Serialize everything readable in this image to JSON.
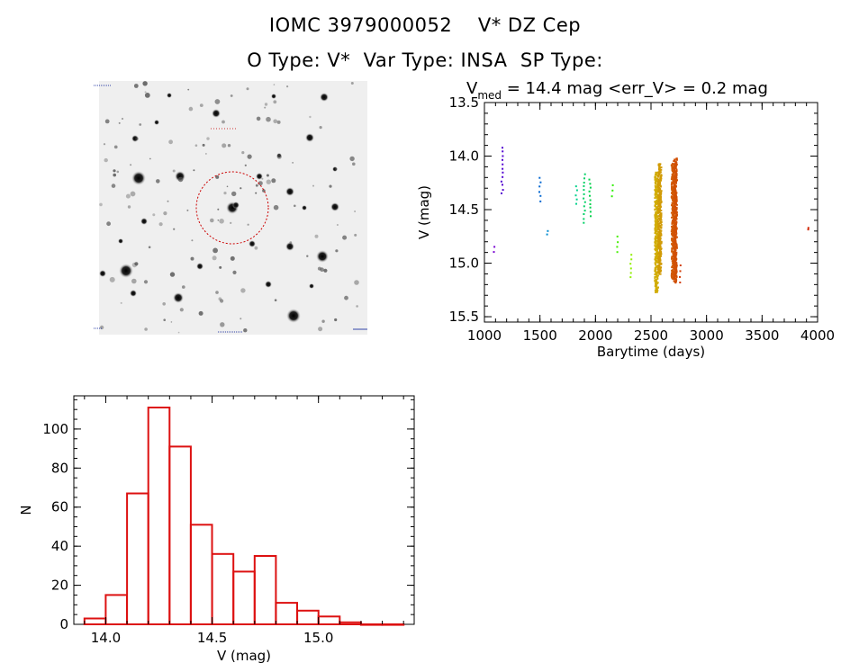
{
  "header": {
    "title_line1": "IOMC 3979000052    V* DZ Cep",
    "title_line2": "O Type: V*  Var Type: INSA  SP Type:"
  },
  "chart_data": [
    {
      "type": "scatter",
      "title_main": "V",
      "title_sub": "med",
      "title_rest": " = 14.4 mag <err_V> = 0.2 mag",
      "xlabel": "Barytime (days)",
      "ylabel": "V (mag)",
      "xlim": [
        1000,
        4000
      ],
      "ylim": [
        15.55,
        13.5
      ],
      "y_inverted": true,
      "xticks": [
        1000,
        1500,
        2000,
        2500,
        3000,
        3500,
        4000
      ],
      "yticks": [
        13.5,
        14.0,
        14.5,
        15.0,
        15.5
      ],
      "point_color_scale": "time (purple → blue → cyan → green → yellow → orange → red)",
      "clusters": [
        {
          "x": 1090,
          "y_min": 14.85,
          "y_max": 14.9
        },
        {
          "x": 1160,
          "y_min": 13.92,
          "y_max": 14.35
        },
        {
          "x": 1500,
          "y_min": 14.2,
          "y_max": 14.42
        },
        {
          "x": 1570,
          "y_min": 14.7,
          "y_max": 14.73
        },
        {
          "x": 1830,
          "y_min": 14.28,
          "y_max": 14.45
        },
        {
          "x": 1900,
          "y_min": 14.17,
          "y_max": 14.62
        },
        {
          "x": 1950,
          "y_min": 14.22,
          "y_max": 14.56
        },
        {
          "x": 2150,
          "y_min": 14.27,
          "y_max": 14.38
        },
        {
          "x": 2200,
          "y_min": 14.75,
          "y_max": 14.9
        },
        {
          "x": 2320,
          "y_min": 14.92,
          "y_max": 15.13
        },
        {
          "x": 2550,
          "y_min": 14.15,
          "y_max": 15.27
        },
        {
          "x": 2580,
          "y_min": 14.07,
          "y_max": 15.1
        },
        {
          "x": 2700,
          "y_min": 14.07,
          "y_max": 15.15
        },
        {
          "x": 2720,
          "y_min": 14.02,
          "y_max": 15.18
        },
        {
          "x": 2760,
          "y_min": 15.02,
          "y_max": 15.18
        },
        {
          "x": 3920,
          "y_min": 14.67,
          "y_max": 14.69
        }
      ]
    },
    {
      "type": "bar",
      "xlabel": "V (mag)",
      "ylabel": "N",
      "xlim": [
        13.85,
        15.45
      ],
      "ylim": [
        0,
        117
      ],
      "xticks": [
        14.0,
        14.5,
        15.0
      ],
      "yticks": [
        0,
        20,
        40,
        60,
        80,
        100
      ],
      "bin_width": 0.1,
      "bin_starts": [
        13.9,
        14.0,
        14.1,
        14.2,
        14.3,
        14.4,
        14.5,
        14.6,
        14.7,
        14.8,
        14.9,
        15.0,
        15.1,
        15.2,
        15.3
      ],
      "values": [
        3,
        15,
        67,
        111,
        91,
        51,
        36,
        27,
        35,
        11,
        7,
        4,
        1,
        0,
        0
      ],
      "bar_color": "#dd1111"
    }
  ]
}
